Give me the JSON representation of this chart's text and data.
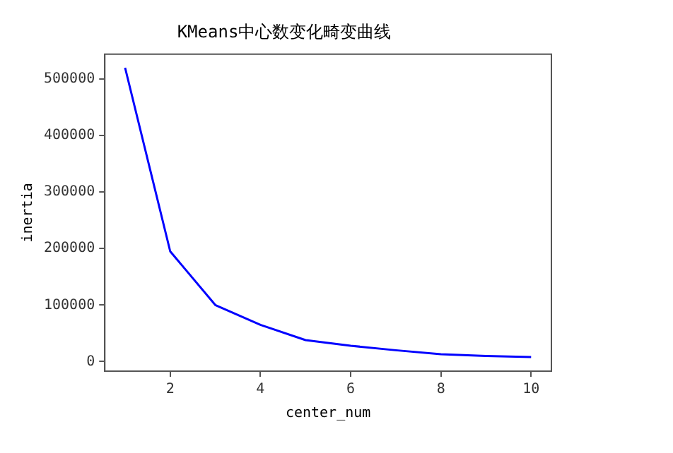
{
  "chart_data": {
    "type": "line",
    "title": "KMeans中心数变化畸变曲线",
    "xlabel": "center_num",
    "ylabel": "inertia",
    "x": [
      1,
      2,
      3,
      4,
      5,
      6,
      7,
      8,
      9,
      10
    ],
    "series": [
      {
        "color": "#0000ff",
        "values": [
          520000,
          195000,
          100000,
          65000,
          38000,
          28000,
          20000,
          13000,
          10000,
          8000
        ]
      }
    ],
    "xlim": [
      0.55,
      10.45
    ],
    "xticks": [
      2,
      4,
      6,
      8,
      10
    ],
    "ylim": [
      -17000,
      544000
    ],
    "yticks": [
      0,
      100000,
      200000,
      300000,
      400000,
      500000
    ],
    "grid": false,
    "legend": false,
    "marker": "none",
    "line_style": "solid"
  }
}
